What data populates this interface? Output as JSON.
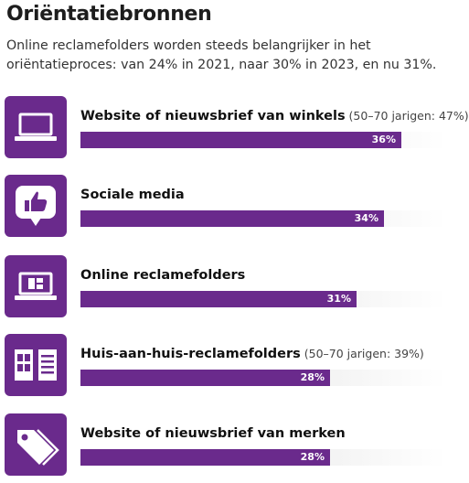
{
  "title": "Oriëntatiebronnen",
  "subtitle": "Online reclamefolders worden steeds belangrijker in het oriëntatieproces: van 24% in 2021, naar 30% in 2023, en nu 31%.",
  "colors": {
    "accent": "#6a2a8c",
    "track": "#eeeeee"
  },
  "chart_data": {
    "type": "bar",
    "orientation": "horizontal",
    "title": "Oriëntatiebronnen",
    "categories": [
      "Website of nieuwsbrief van winkels",
      "Sociale media",
      "Online reclamefolders",
      "Huis-aan-huis-reclamefolders",
      "Website of nieuwsbrief van merken"
    ],
    "values": [
      36,
      34,
      31,
      28,
      28
    ],
    "value_labels": [
      "36%",
      "34%",
      "31%",
      "28%",
      "28%"
    ],
    "notes": [
      "(50–70 jarigen: 47%)",
      "",
      "",
      "(50–70 jarigen: 39%)",
      ""
    ],
    "icons": [
      "laptop-icon",
      "thumbs-up-icon",
      "laptop-folder-icon",
      "open-folder-icon",
      "price-tag-icon"
    ],
    "xlim": [
      0,
      41
    ],
    "unit": "%"
  }
}
